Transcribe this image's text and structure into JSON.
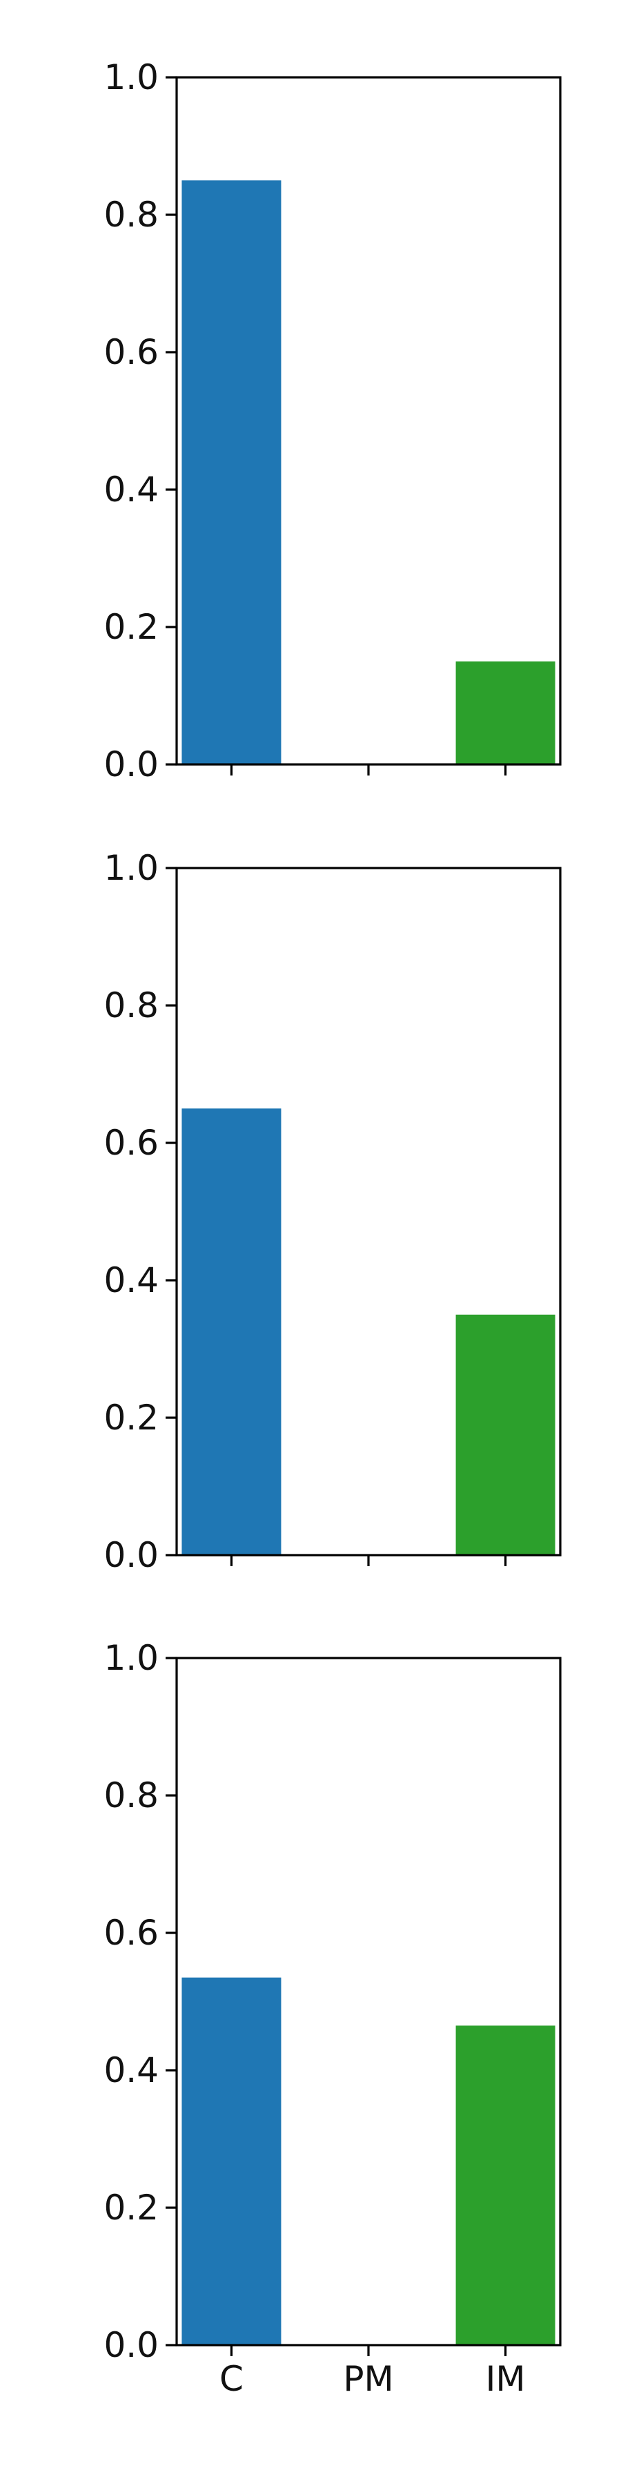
{
  "chart_data": [
    {
      "type": "bar",
      "categories": [
        "C",
        "PM",
        "IM"
      ],
      "values": [
        0.85,
        0.0,
        0.15
      ],
      "bar_colors": [
        "#1f77b4",
        "#ff7f0e",
        "#2ca02c"
      ],
      "ylim": [
        0,
        1
      ],
      "yticks": [
        "0.0",
        "0.2",
        "0.4",
        "0.6",
        "0.8",
        "1.0"
      ],
      "xtick_labels_visible": false
    },
    {
      "type": "bar",
      "categories": [
        "C",
        "PM",
        "IM"
      ],
      "values": [
        0.65,
        0.0,
        0.35
      ],
      "bar_colors": [
        "#1f77b4",
        "#ff7f0e",
        "#2ca02c"
      ],
      "ylim": [
        0,
        1
      ],
      "yticks": [
        "0.0",
        "0.2",
        "0.4",
        "0.6",
        "0.8",
        "1.0"
      ],
      "xtick_labels_visible": false
    },
    {
      "type": "bar",
      "categories": [
        "C",
        "PM",
        "IM"
      ],
      "values": [
        0.535,
        0.0,
        0.465
      ],
      "bar_colors": [
        "#1f77b4",
        "#ff7f0e",
        "#2ca02c"
      ],
      "ylim": [
        0,
        1
      ],
      "yticks": [
        "0.0",
        "0.2",
        "0.4",
        "0.6",
        "0.8",
        "1.0"
      ],
      "xtick_labels_visible": true
    }
  ]
}
